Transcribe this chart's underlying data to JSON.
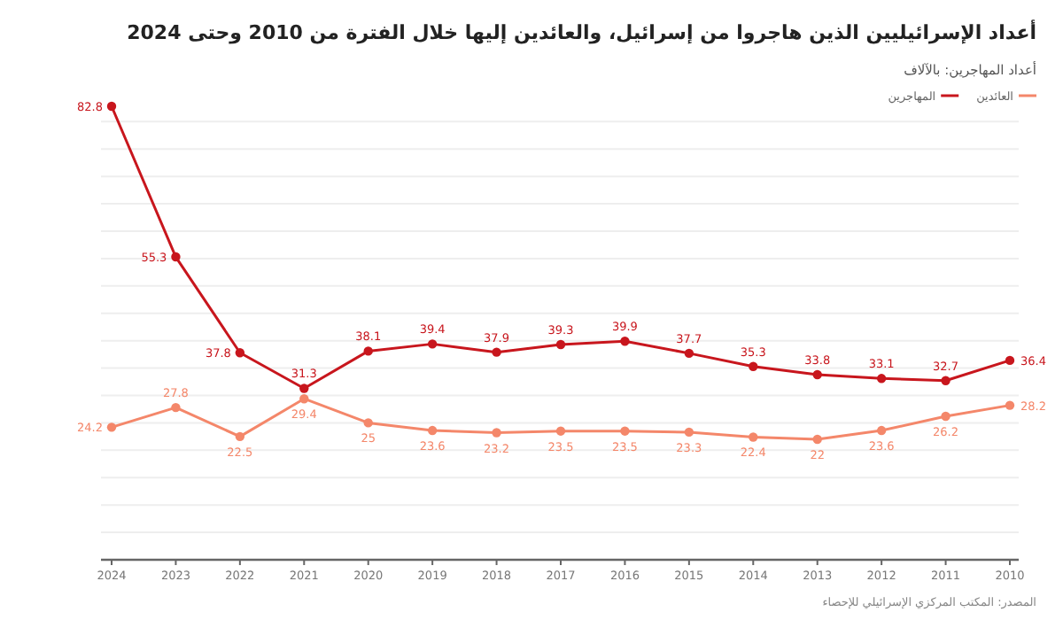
{
  "chart_data": {
    "type": "line",
    "title": "أعداد الإسرائيليين الذين هاجروا من إسرائيل، والعائدين إليها خلال الفترة من 2010 وحتى 2024",
    "subtitle": "أعداد المهاجرين: بالآلاف",
    "annotations": [
      "المصدر: المكتب المركزي الإسرائيلي للإحصاء"
    ],
    "categories": [
      "2024",
      "2023",
      "2022",
      "2021",
      "2020",
      "2019",
      "2018",
      "2017",
      "2016",
      "2015",
      "2014",
      "2013",
      "2012",
      "2011",
      "2010"
    ],
    "series": [
      {
        "name": "العائدين",
        "color": "#f4876a",
        "values": [
          24.2,
          27.8,
          22.5,
          29.4,
          25,
          23.6,
          23.2,
          23.5,
          23.5,
          23.3,
          22.4,
          22,
          23.6,
          26.2,
          28.2
        ]
      },
      {
        "name": "المهاجرين",
        "color": "#c8161d",
        "values": [
          82.8,
          55.3,
          37.8,
          31.3,
          38.1,
          39.4,
          37.9,
          39.3,
          39.9,
          37.7,
          35.3,
          33.8,
          33.1,
          32.7,
          36.4
        ]
      }
    ],
    "yticks": [
      {
        "value": 0,
        "label": null
      },
      {
        "value": 5,
        "label": null
      },
      {
        "value": 10,
        "label": null
      },
      {
        "value": 15,
        "label": null
      },
      {
        "value": 20,
        "label": null
      },
      {
        "value": 25,
        "label": null
      },
      {
        "value": 30,
        "label": null
      },
      {
        "value": 35,
        "label": null
      },
      {
        "value": 40,
        "label": null
      },
      {
        "value": 45,
        "label": null
      },
      {
        "value": 50,
        "label": null
      },
      {
        "value": 55,
        "label": null
      },
      {
        "value": 60,
        "label": null
      },
      {
        "value": 65,
        "label": null
      },
      {
        "value": 70,
        "label": null
      },
      {
        "value": 75,
        "label": null
      },
      {
        "value": 80,
        "label": null
      }
    ],
    "tick_labels": "x",
    "grid": "y",
    "legend": "top right",
    "marker": "circle",
    "line_style": "solid",
    "data_labels": true
  }
}
